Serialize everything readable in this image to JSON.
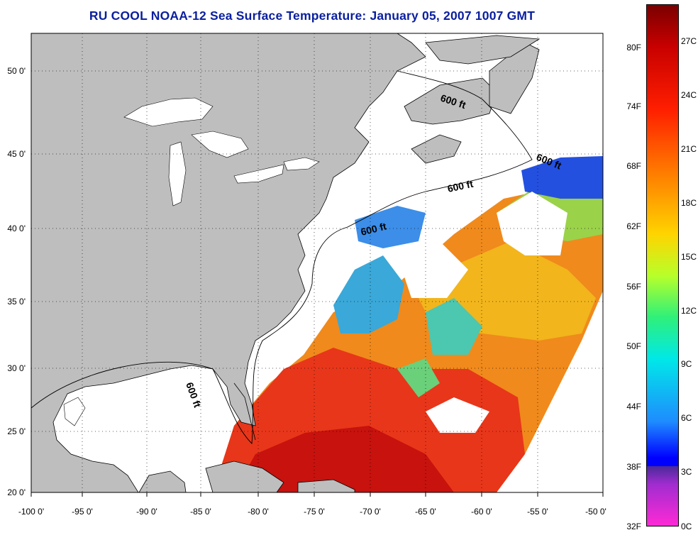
{
  "title": "RU COOL  NOAA-12  Sea Surface Temperature:  January 05, 2007 1007 GMT",
  "map": {
    "lat_labels": [
      "50 0'",
      "45 0'",
      "40 0'",
      "35 0'",
      "30 0'",
      "25 0'",
      "20 0'"
    ],
    "lon_labels": [
      "-100 0'",
      "-95 0'",
      "-90 0'",
      "-85 0'",
      "-80 0'",
      "-75 0'",
      "-70 0'",
      "-65 0'",
      "-60 0'",
      "-55 0'",
      "-50 0'"
    ],
    "isobath_labels": [
      "600 ft",
      "600 ft",
      "600 ft",
      "600 ft",
      "600 ft"
    ],
    "colors": {
      "land": "#bebebe",
      "no_data": "#ffffff",
      "title": "#0b1f9e"
    }
  },
  "colorbar": {
    "fahrenheit_labels": [
      "80F",
      "74F",
      "68F",
      "62F",
      "56F",
      "50F",
      "44F",
      "38F",
      "32F"
    ],
    "celsius_labels": [
      "27C",
      "24C",
      "21C",
      "18C",
      "15C",
      "12C",
      "9C",
      "6C",
      "3C",
      "0C"
    ]
  }
}
